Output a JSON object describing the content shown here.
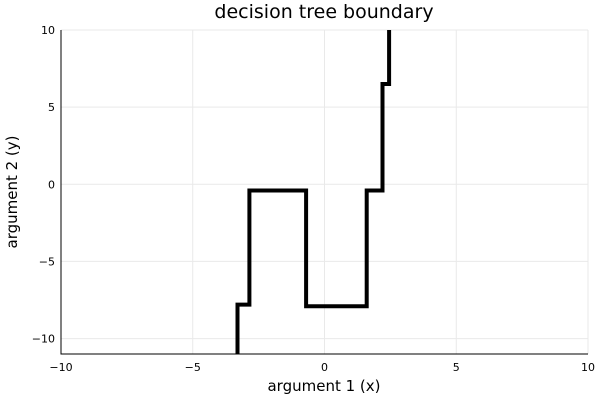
{
  "chart_data": {
    "type": "line",
    "title": "decision tree boundary",
    "xlabel": "argument 1 (x)",
    "ylabel": "argument 2 (y)",
    "xlim": [
      -10,
      10
    ],
    "ylim": [
      -11,
      10
    ],
    "xticks": [
      -10,
      -5,
      0,
      5,
      10
    ],
    "yticks": [
      -10,
      -5,
      0,
      5,
      10
    ],
    "grid": true,
    "legend": "none",
    "series": [
      {
        "color": "#000000",
        "x": [
          -3.3,
          -3.3,
          -2.85,
          -2.85,
          -0.7,
          -0.7,
          1.6,
          1.6,
          2.2,
          2.2,
          2.45,
          2.45
        ],
        "y": [
          -11,
          -7.8,
          -7.8,
          -0.4,
          -0.4,
          -7.9,
          -7.9,
          -0.4,
          -0.4,
          6.5,
          6.5,
          10
        ]
      }
    ]
  }
}
